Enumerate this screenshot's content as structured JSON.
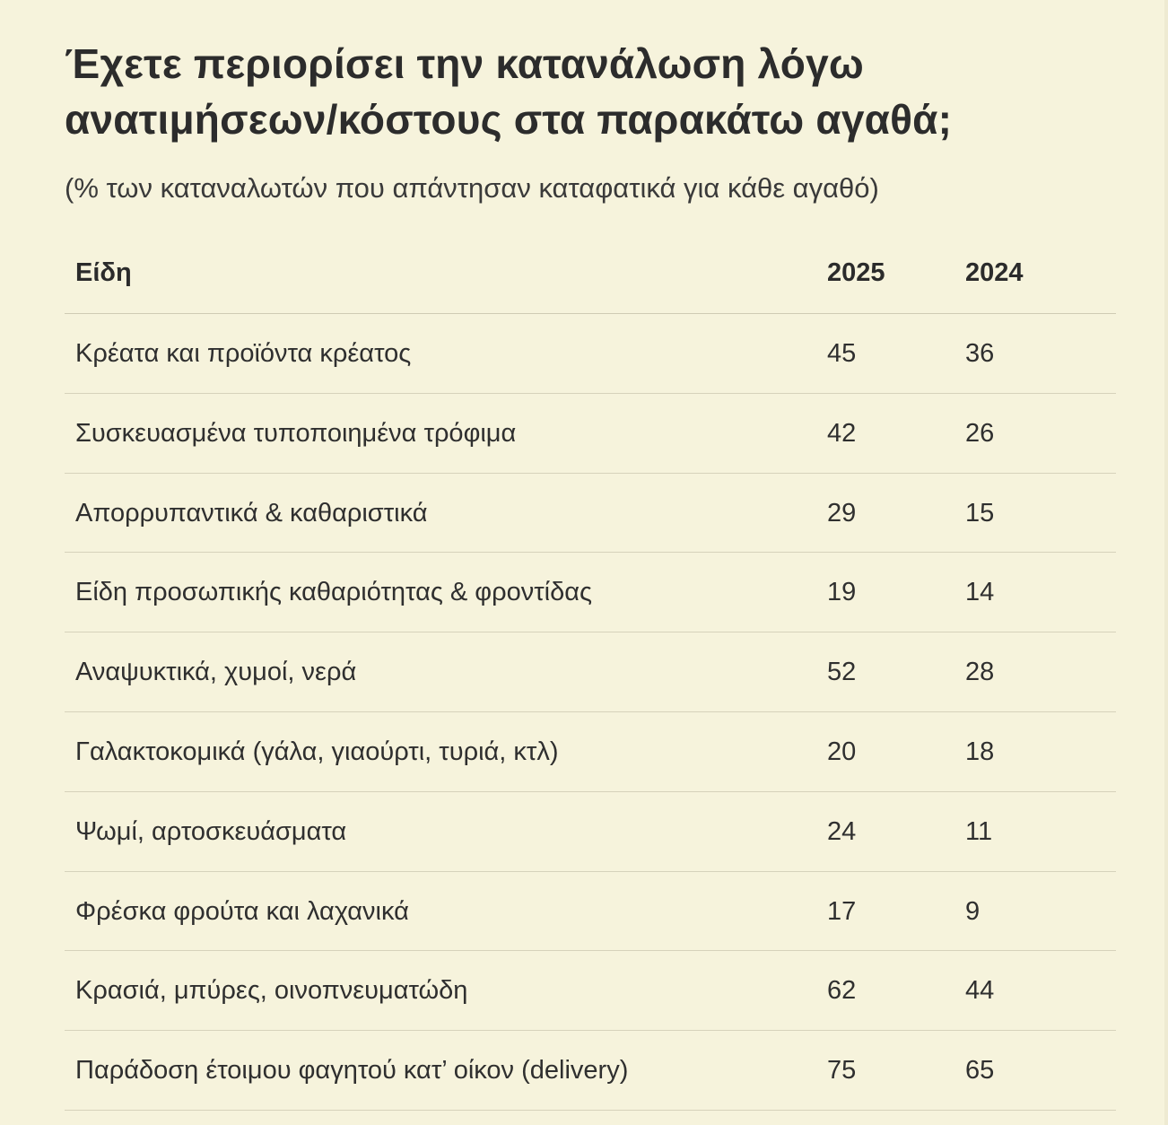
{
  "chart_data": {
    "type": "table",
    "title": "Έχετε περιορίσει την κατανάλωση λόγω ανατιμήσεων/κόστους στα παρακάτω αγαθά;",
    "subtitle": "(% των καταναλωτών που απάντησαν καταφατικά για κάθε αγαθό)",
    "columns": [
      "Είδη",
      "2025",
      "2024"
    ],
    "rows": [
      {
        "item": "Κρέατα και προϊόντα κρέατος",
        "v2025": "45",
        "v2024": "36"
      },
      {
        "item": "Συσκευασμένα τυποποιημένα τρόφιμα",
        "v2025": "42",
        "v2024": "26"
      },
      {
        "item": "Απορρυπαντικά & καθαριστικά",
        "v2025": "29",
        "v2024": "15"
      },
      {
        "item": "Είδη προσωπικής καθαριότητας & φροντίδας",
        "v2025": "19",
        "v2024": "14"
      },
      {
        "item": "Αναψυκτικά, χυμοί, νερά",
        "v2025": "52",
        "v2024": "28"
      },
      {
        "item": "Γαλακτοκομικά (γάλα, γιαούρτι, τυριά, κτλ)",
        "v2025": "20",
        "v2024": "18"
      },
      {
        "item": "Ψωμί, αρτοσκευάσματα",
        "v2025": "24",
        "v2024": "11"
      },
      {
        "item": "Φρέσκα φρούτα και λαχανικά",
        "v2025": "17",
        "v2024": "9"
      },
      {
        "item": "Κρασιά, μπύρες, οινοπνευματώδη",
        "v2025": "62",
        "v2024": "44"
      },
      {
        "item": "Παράδοση έτοιμου φαγητού κατ’ οίκον (delivery)",
        "v2025": "75",
        "v2024": "65"
      }
    ]
  },
  "colors": {
    "background": "#f6f3dc",
    "text": "#2b2b2b",
    "divider": "#d6d2bb"
  }
}
